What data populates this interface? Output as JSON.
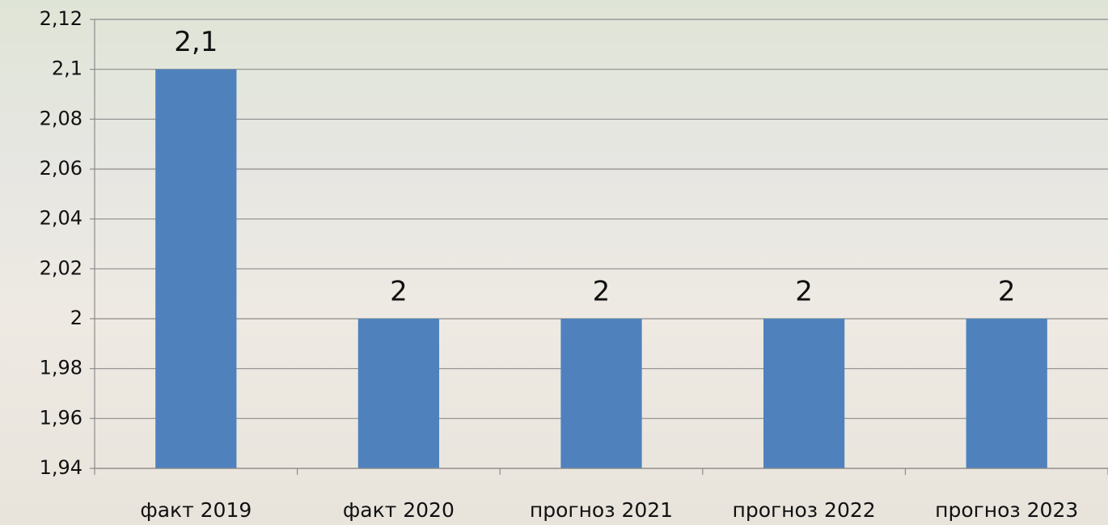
{
  "chart_data": {
    "type": "bar",
    "categories": [
      "факт 2019",
      "факт 2020",
      "прогноз 2021",
      "прогноз 2022",
      "прогноз 2023"
    ],
    "values": [
      2.1,
      2,
      2,
      2,
      2
    ],
    "value_labels": [
      "2,1",
      "2",
      "2",
      "2",
      "2"
    ],
    "color": "#4f81bd",
    "ylim": [
      1.94,
      2.12
    ],
    "yticks": [
      {
        "value": 1.94,
        "label": "1,94"
      },
      {
        "value": 1.96,
        "label": "1,96"
      },
      {
        "value": 1.98,
        "label": "1,98"
      },
      2,
      {
        "value": 2.02,
        "label": "2,02"
      },
      {
        "value": 2.04,
        "label": "2,04"
      },
      {
        "value": 2.06,
        "label": "2,06"
      },
      {
        "value": 2.08,
        "label": "2,08"
      },
      {
        "value": 2.1,
        "label": "2,1"
      },
      {
        "value": 2.12,
        "label": "2,12"
      }
    ],
    "grid": true
  }
}
